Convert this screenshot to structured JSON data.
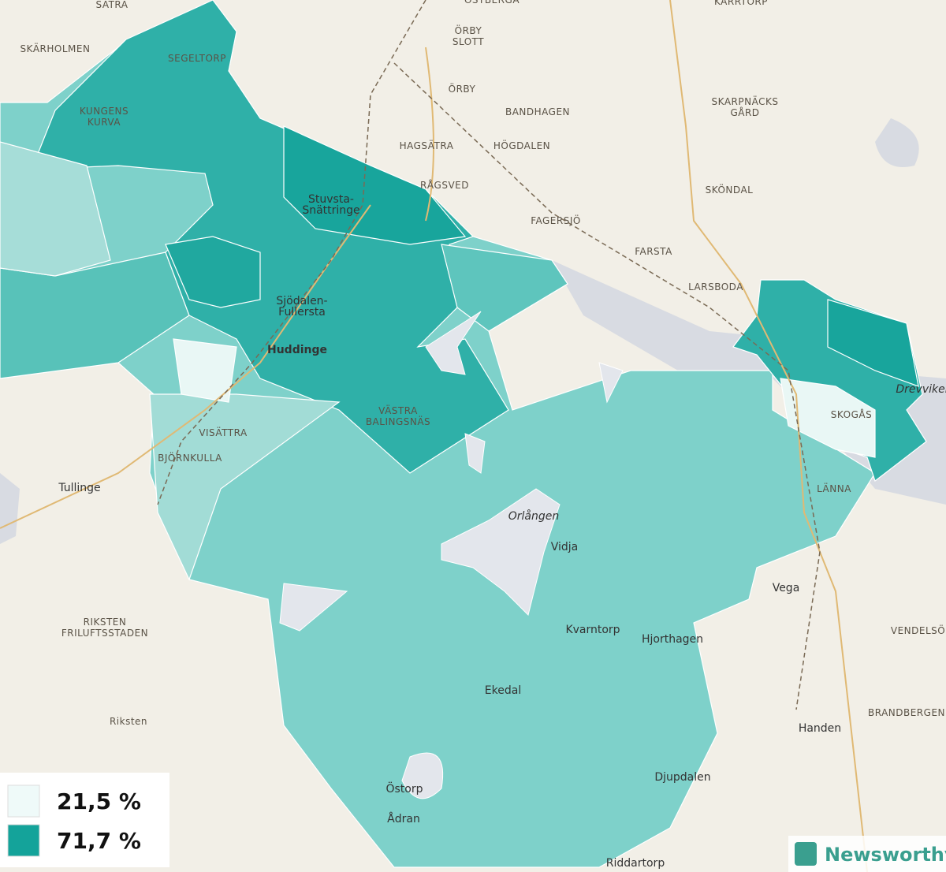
{
  "places": [
    {
      "lines": [
        "SÄTRA"
      ]
    },
    {
      "lines": [
        "SKÄRHOLMEN"
      ]
    },
    {
      "lines": [
        "SEGELTORP"
      ]
    },
    {
      "lines": [
        "KUNGENS",
        "KURVA"
      ]
    },
    {
      "lines": [
        "Stuvsta-",
        "Snättringe"
      ]
    },
    {
      "lines": [
        "Sjödalen-",
        "Fullersta"
      ]
    },
    {
      "lines": [
        "Huddinge"
      ]
    },
    {
      "lines": [
        "VÄSTRA",
        "BALINGSNÄS"
      ]
    },
    {
      "lines": [
        "VISÄTTRA"
      ]
    },
    {
      "lines": [
        "BJÖRNKULLA"
      ]
    },
    {
      "lines": [
        "Tullinge"
      ]
    },
    {
      "lines": [
        "RIKSTEN",
        "FRILUFTSSTADEN"
      ]
    },
    {
      "lines": [
        "Riksten"
      ]
    },
    {
      "lines": [
        "ÖSTBERGA"
      ]
    },
    {
      "lines": [
        "ÖRBY",
        "SLOTT"
      ]
    },
    {
      "lines": [
        "ÖRBY"
      ]
    },
    {
      "lines": [
        "BANDHAGEN"
      ]
    },
    {
      "lines": [
        "HAGSÄTRA"
      ]
    },
    {
      "lines": [
        "HÖGDALEN"
      ]
    },
    {
      "lines": [
        "RÅGSVED"
      ]
    },
    {
      "lines": [
        "FAGERSJÖ"
      ]
    },
    {
      "lines": [
        "FARSTA"
      ]
    },
    {
      "lines": [
        "SKÖNDAL"
      ]
    },
    {
      "lines": [
        "SKARPNÄCKS",
        "GÅRD"
      ]
    },
    {
      "lines": [
        "KARRTORP"
      ]
    },
    {
      "lines": [
        "LARSBODA"
      ]
    },
    {
      "lines": [
        "SKOGÅS"
      ]
    },
    {
      "lines": [
        "LÄNNA"
      ]
    },
    {
      "lines": [
        "Orlången"
      ]
    },
    {
      "lines": [
        "Vidja"
      ]
    },
    {
      "lines": [
        "Vega"
      ]
    },
    {
      "lines": [
        "Kvarntorp"
      ]
    },
    {
      "lines": [
        "Hjorthagen"
      ]
    },
    {
      "lines": [
        "Ekedal"
      ]
    },
    {
      "lines": [
        "Östorp"
      ]
    },
    {
      "lines": [
        "Ådran"
      ]
    },
    {
      "lines": [
        "Djupdalen"
      ]
    },
    {
      "lines": [
        "Riddartorp"
      ]
    },
    {
      "lines": [
        "Handen"
      ]
    },
    {
      "lines": [
        "VENDELSÖM"
      ]
    },
    {
      "lines": [
        "BRANDBERGEN"
      ]
    },
    {
      "lines": [
        "Drevviken"
      ]
    }
  ],
  "legend": [
    {
      "label": "21,5 %",
      "color": "#effaf9"
    },
    {
      "label": "71,7 %",
      "color": "#14a39a"
    }
  ],
  "brand": "Newsworthy"
}
